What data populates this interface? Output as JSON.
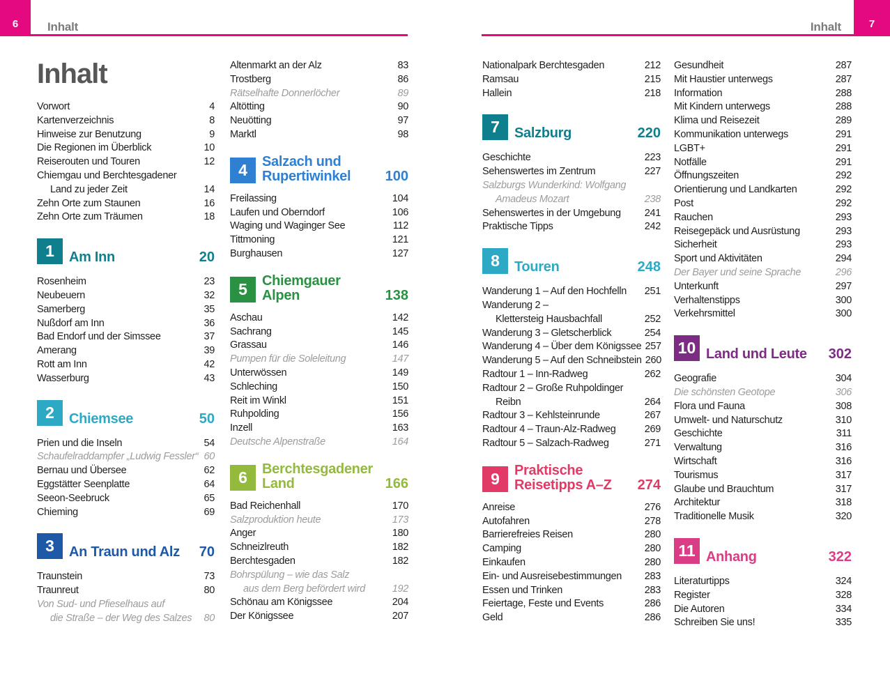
{
  "page": {
    "left_header": {
      "page_num": "6",
      "title": "Inhalt"
    },
    "right_header": {
      "page_num": "7",
      "title": "Inhalt"
    },
    "accent": "#e5097f"
  },
  "colors": {
    "header_magenta": "#e5097f",
    "running_title_gray": "#7b7b7b",
    "toc_title_gray": "#575757",
    "body_text": "#1e1e1e",
    "italic_gray": "#9c9c9c"
  },
  "columns": [
    {
      "blocks": [
        {
          "type": "title",
          "text": "Inhalt"
        },
        {
          "type": "rows",
          "rows": [
            {
              "text": "Vorwort",
              "page": "4"
            },
            {
              "text": "Kartenverzeichnis",
              "page": "8"
            },
            {
              "text": "Hinweise zur Benutzung",
              "page": "9"
            },
            {
              "text": "Die Regionen im Überblick",
              "page": "10"
            },
            {
              "text": "Reiserouten und Touren",
              "page": "12"
            },
            {
              "text": "Chiemgau und Berchtesgadener",
              "page": ""
            },
            {
              "text": "Land zu jeder Zeit",
              "page": "14",
              "indent": true
            },
            {
              "text": "Zehn Orte zum Staunen",
              "page": "16"
            },
            {
              "text": "Zehn Orte zum Träumen",
              "page": "18"
            }
          ]
        },
        {
          "type": "section",
          "num": "1",
          "lines": [
            "Am Inn"
          ],
          "page": "20",
          "color": "#0f7f8e"
        },
        {
          "type": "rows",
          "rows": [
            {
              "text": "Rosenheim",
              "page": "23"
            },
            {
              "text": "Neubeuern",
              "page": "32"
            },
            {
              "text": "Samerberg",
              "page": "35"
            },
            {
              "text": "Nußdorf am Inn",
              "page": "36"
            },
            {
              "text": "Bad Endorf und der Simssee",
              "page": "37"
            },
            {
              "text": "Amerang",
              "page": "39"
            },
            {
              "text": "Rott am Inn",
              "page": "42"
            },
            {
              "text": "Wasserburg",
              "page": "43"
            }
          ]
        },
        {
          "type": "section",
          "num": "2",
          "lines": [
            "Chiemsee"
          ],
          "page": "50",
          "color": "#2da9c6"
        },
        {
          "type": "rows",
          "rows": [
            {
              "text": "Prien und die Inseln",
              "page": "54"
            },
            {
              "text": "Schaufelraddampfer „Ludwig Fessler“",
              "page": "60",
              "italic": true
            },
            {
              "text": "Bernau und Übersee",
              "page": "62"
            },
            {
              "text": "Eggstätter Seenplatte",
              "page": "64"
            },
            {
              "text": "Seeon-Seebruck",
              "page": "65"
            },
            {
              "text": "Chieming",
              "page": "69"
            }
          ]
        },
        {
          "type": "section",
          "num": "3",
          "lines": [
            "An Traun und Alz"
          ],
          "page": "70",
          "color": "#1d59a6"
        },
        {
          "type": "rows",
          "rows": [
            {
              "text": "Traunstein",
              "page": "73"
            },
            {
              "text": "Traunreut",
              "page": "80"
            },
            {
              "text": "Von Sud- und Pfieselhaus auf",
              "page": "",
              "italic": true
            },
            {
              "text": "die Straße – der Weg des Salzes",
              "page": "80",
              "italic": true,
              "indent": true
            }
          ]
        }
      ]
    },
    {
      "blocks": [
        {
          "type": "rows",
          "rows": [
            {
              "text": "Altenmarkt an der Alz",
              "page": "83"
            },
            {
              "text": "Trostberg",
              "page": "86"
            },
            {
              "text": "Rätselhafte Donnerlöcher",
              "page": "89",
              "italic": true
            },
            {
              "text": "Altötting",
              "page": "90"
            },
            {
              "text": "Neuötting",
              "page": "97"
            },
            {
              "text": "Marktl",
              "page": "98"
            }
          ]
        },
        {
          "type": "section",
          "num": "4",
          "lines": [
            "Salzach und",
            "Rupertiwinkel"
          ],
          "page": "100",
          "color": "#2f80d2"
        },
        {
          "type": "rows",
          "rows": [
            {
              "text": "Freilassing",
              "page": "104"
            },
            {
              "text": "Laufen und Oberndorf",
              "page": "106"
            },
            {
              "text": "Waging und Waginger See",
              "page": "112"
            },
            {
              "text": "Tittmoning",
              "page": "121"
            },
            {
              "text": "Burghausen",
              "page": "127"
            }
          ]
        },
        {
          "type": "section",
          "num": "5",
          "lines": [
            "Chiemgauer",
            "Alpen"
          ],
          "page": "138",
          "color": "#2a9143"
        },
        {
          "type": "rows",
          "rows": [
            {
              "text": "Aschau",
              "page": "142"
            },
            {
              "text": "Sachrang",
              "page": "145"
            },
            {
              "text": "Grassau",
              "page": "146"
            },
            {
              "text": "Pumpen für die Soleleitung",
              "page": "147",
              "italic": true
            },
            {
              "text": "Unterwössen",
              "page": "149"
            },
            {
              "text": "Schleching",
              "page": "150"
            },
            {
              "text": "Reit im Winkl",
              "page": "151"
            },
            {
              "text": "Ruhpolding",
              "page": "156"
            },
            {
              "text": "Inzell",
              "page": "163"
            },
            {
              "text": "Deutsche Alpenstraße",
              "page": "164",
              "italic": true
            }
          ]
        },
        {
          "type": "section",
          "num": "6",
          "lines": [
            "Berchtesgadener",
            "Land"
          ],
          "page": "166",
          "color": "#93ba3d"
        },
        {
          "type": "rows",
          "rows": [
            {
              "text": "Bad Reichenhall",
              "page": "170"
            },
            {
              "text": "Salzproduktion heute",
              "page": "173",
              "italic": true
            },
            {
              "text": "Anger",
              "page": "180"
            },
            {
              "text": "Schneizlreuth",
              "page": "182"
            },
            {
              "text": "Berchtesgaden",
              "page": "182"
            },
            {
              "text": "Bohrspülung – wie das Salz",
              "page": "",
              "italic": true
            },
            {
              "text": "aus dem Berg befördert wird",
              "page": "192",
              "italic": true,
              "indent": true
            },
            {
              "text": "Schönau am Königssee",
              "page": "204"
            },
            {
              "text": "Der Königssee",
              "page": "207"
            }
          ]
        }
      ]
    },
    {
      "blocks": [
        {
          "type": "rows",
          "rows": [
            {
              "text": "Nationalpark Berchtesgaden",
              "page": "212"
            },
            {
              "text": "Ramsau",
              "page": "215"
            },
            {
              "text": "Hallein",
              "page": "218"
            }
          ]
        },
        {
          "type": "section",
          "num": "7",
          "lines": [
            "Salzburg"
          ],
          "page": "220",
          "color": "#0f7f8e"
        },
        {
          "type": "rows",
          "rows": [
            {
              "text": "Geschichte",
              "page": "223"
            },
            {
              "text": "Sehenswertes im Zentrum",
              "page": "227"
            },
            {
              "text": "Salzburgs Wunderkind: Wolfgang",
              "page": "",
              "italic": true
            },
            {
              "text": "Amadeus Mozart",
              "page": "238",
              "italic": true,
              "indent": true
            },
            {
              "text": "Sehenswertes in der Umgebung",
              "page": "241"
            },
            {
              "text": "Praktische Tipps",
              "page": "242"
            }
          ]
        },
        {
          "type": "section",
          "num": "8",
          "lines": [
            "Touren"
          ],
          "page": "248",
          "color": "#2da9c6"
        },
        {
          "type": "rows",
          "rows": [
            {
              "text": "Wanderung 1 – Auf den Hochfelln",
              "page": "251"
            },
            {
              "text": "Wanderung 2 –",
              "page": ""
            },
            {
              "text": "Klettersteig Hausbachfall",
              "page": "252",
              "indent": true
            },
            {
              "text": "Wanderung 3 – Gletscherblick",
              "page": "254"
            },
            {
              "text": "Wanderung 4 – Über dem Königssee",
              "page": "257"
            },
            {
              "text": "Wanderung 5 – Auf den Schneibstein",
              "page": "260"
            },
            {
              "text": "Radtour 1 – Inn-Radweg",
              "page": "262"
            },
            {
              "text": "Radtour 2 – Große Ruhpoldinger",
              "page": ""
            },
            {
              "text": "Reibn",
              "page": "264",
              "indent": true
            },
            {
              "text": "Radtour 3 – Kehlsteinrunde",
              "page": "267"
            },
            {
              "text": "Radtour 4 – Traun-Alz-Radweg",
              "page": "269"
            },
            {
              "text": "Radtour 5 – Salzach-Radweg",
              "page": "271"
            }
          ]
        },
        {
          "type": "section",
          "num": "9",
          "lines": [
            "Praktische",
            "Reisetipps A–Z"
          ],
          "page": "274",
          "color": "#e23a66"
        },
        {
          "type": "rows",
          "rows": [
            {
              "text": "Anreise",
              "page": "276"
            },
            {
              "text": "Autofahren",
              "page": "278"
            },
            {
              "text": "Barrierefreies Reisen",
              "page": "280"
            },
            {
              "text": "Camping",
              "page": "280"
            },
            {
              "text": "Einkaufen",
              "page": "280"
            },
            {
              "text": "Ein- und Ausreisebestimmungen",
              "page": "283"
            },
            {
              "text": "Essen und Trinken",
              "page": "283"
            },
            {
              "text": "Feiertage, Feste und Events",
              "page": "286"
            },
            {
              "text": "Geld",
              "page": "286"
            }
          ]
        }
      ]
    },
    {
      "blocks": [
        {
          "type": "rows",
          "rows": [
            {
              "text": "Gesundheit",
              "page": "287"
            },
            {
              "text": "Mit Haustier unterwegs",
              "page": "287"
            },
            {
              "text": "Information",
              "page": "288"
            },
            {
              "text": "Mit Kindern unterwegs",
              "page": "288"
            },
            {
              "text": "Klima und Reisezeit",
              "page": "289"
            },
            {
              "text": "Kommunikation unterwegs",
              "page": "291"
            },
            {
              "text": "LGBT+",
              "page": "291"
            },
            {
              "text": "Notfälle",
              "page": "291"
            },
            {
              "text": "Öffnungszeiten",
              "page": "292"
            },
            {
              "text": "Orientierung und Landkarten",
              "page": "292"
            },
            {
              "text": "Post",
              "page": "292"
            },
            {
              "text": "Rauchen",
              "page": "293"
            },
            {
              "text": "Reisegepäck und Ausrüstung",
              "page": "293"
            },
            {
              "text": "Sicherheit",
              "page": "293"
            },
            {
              "text": "Sport und Aktivitäten",
              "page": "294"
            },
            {
              "text": "Der Bayer und seine Sprache",
              "page": "296",
              "italic": true
            },
            {
              "text": "Unterkunft",
              "page": "297"
            },
            {
              "text": "Verhaltenstipps",
              "page": "300"
            },
            {
              "text": "Verkehrsmittel",
              "page": "300"
            }
          ]
        },
        {
          "type": "section",
          "num": "10",
          "lines": [
            "Land und Leute"
          ],
          "page": "302",
          "color": "#7d2c83"
        },
        {
          "type": "rows",
          "rows": [
            {
              "text": "Geografie",
              "page": "304"
            },
            {
              "text": "Die schönsten Geotope",
              "page": "306",
              "italic": true
            },
            {
              "text": "Flora und Fauna",
              "page": "308"
            },
            {
              "text": "Umwelt- und Naturschutz",
              "page": "310"
            },
            {
              "text": "Geschichte",
              "page": "311"
            },
            {
              "text": "Verwaltung",
              "page": "316"
            },
            {
              "text": "Wirtschaft",
              "page": "316"
            },
            {
              "text": "Tourismus",
              "page": "317"
            },
            {
              "text": "Glaube und Brauchtum",
              "page": "317"
            },
            {
              "text": "Architektur",
              "page": "318"
            },
            {
              "text": "Traditionelle Musik",
              "page": "320"
            }
          ]
        },
        {
          "type": "section",
          "num": "11",
          "lines": [
            "Anhang"
          ],
          "page": "322",
          "color": "#da3d85"
        },
        {
          "type": "rows",
          "rows": [
            {
              "text": "Literaturtipps",
              "page": "324"
            },
            {
              "text": "Register",
              "page": "328"
            },
            {
              "text": "Die Autoren",
              "page": "334"
            },
            {
              "text": "Schreiben Sie uns!",
              "page": "335"
            }
          ]
        }
      ]
    }
  ]
}
